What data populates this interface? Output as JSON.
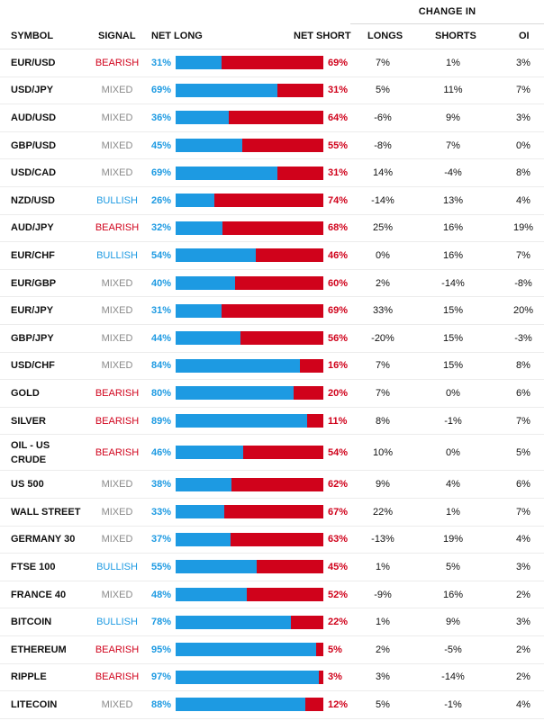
{
  "header": {
    "change_in": "CHANGE IN",
    "symbol": "SYMBOL",
    "signal": "SIGNAL",
    "net_long": "NET LONG",
    "net_short": "NET SHORT",
    "longs": "LONGS",
    "shorts": "SHORTS",
    "oi": "OI"
  },
  "colors": {
    "long": "#1d9ae2",
    "short": "#d0021b",
    "mixed": "#8a8a8a"
  },
  "rows": [
    {
      "symbol": "EUR/USD",
      "signal": "BEARISH",
      "net_long": "31%",
      "net_long_value": 31,
      "net_short": "69%",
      "longs": "7%",
      "shorts": "1%",
      "oi": "3%"
    },
    {
      "symbol": "USD/JPY",
      "signal": "MIXED",
      "net_long": "69%",
      "net_long_value": 69,
      "net_short": "31%",
      "longs": "5%",
      "shorts": "11%",
      "oi": "7%"
    },
    {
      "symbol": "AUD/USD",
      "signal": "MIXED",
      "net_long": "36%",
      "net_long_value": 36,
      "net_short": "64%",
      "longs": "-6%",
      "shorts": "9%",
      "oi": "3%"
    },
    {
      "symbol": "GBP/USD",
      "signal": "MIXED",
      "net_long": "45%",
      "net_long_value": 45,
      "net_short": "55%",
      "longs": "-8%",
      "shorts": "7%",
      "oi": "0%"
    },
    {
      "symbol": "USD/CAD",
      "signal": "MIXED",
      "net_long": "69%",
      "net_long_value": 69,
      "net_short": "31%",
      "longs": "14%",
      "shorts": "-4%",
      "oi": "8%"
    },
    {
      "symbol": "NZD/USD",
      "signal": "BULLISH",
      "net_long": "26%",
      "net_long_value": 26,
      "net_short": "74%",
      "longs": "-14%",
      "shorts": "13%",
      "oi": "4%"
    },
    {
      "symbol": "AUD/JPY",
      "signal": "BEARISH",
      "net_long": "32%",
      "net_long_value": 32,
      "net_short": "68%",
      "longs": "25%",
      "shorts": "16%",
      "oi": "19%"
    },
    {
      "symbol": "EUR/CHF",
      "signal": "BULLISH",
      "net_long": "54%",
      "net_long_value": 54,
      "net_short": "46%",
      "longs": "0%",
      "shorts": "16%",
      "oi": "7%"
    },
    {
      "symbol": "EUR/GBP",
      "signal": "MIXED",
      "net_long": "40%",
      "net_long_value": 40,
      "net_short": "60%",
      "longs": "2%",
      "shorts": "-14%",
      "oi": "-8%"
    },
    {
      "symbol": "EUR/JPY",
      "signal": "MIXED",
      "net_long": "31%",
      "net_long_value": 31,
      "net_short": "69%",
      "longs": "33%",
      "shorts": "15%",
      "oi": "20%"
    },
    {
      "symbol": "GBP/JPY",
      "signal": "MIXED",
      "net_long": "44%",
      "net_long_value": 44,
      "net_short": "56%",
      "longs": "-20%",
      "shorts": "15%",
      "oi": "-3%"
    },
    {
      "symbol": "USD/CHF",
      "signal": "MIXED",
      "net_long": "84%",
      "net_long_value": 84,
      "net_short": "16%",
      "longs": "7%",
      "shorts": "15%",
      "oi": "8%"
    },
    {
      "symbol": "GOLD",
      "signal": "BEARISH",
      "net_long": "80%",
      "net_long_value": 80,
      "net_short": "20%",
      "longs": "7%",
      "shorts": "0%",
      "oi": "6%"
    },
    {
      "symbol": "SILVER",
      "signal": "BEARISH",
      "net_long": "89%",
      "net_long_value": 89,
      "net_short": "11%",
      "longs": "8%",
      "shorts": "-1%",
      "oi": "7%"
    },
    {
      "symbol": "OIL - US CRUDE",
      "signal": "BEARISH",
      "net_long": "46%",
      "net_long_value": 46,
      "net_short": "54%",
      "longs": "10%",
      "shorts": "0%",
      "oi": "5%"
    },
    {
      "symbol": "US 500",
      "signal": "MIXED",
      "net_long": "38%",
      "net_long_value": 38,
      "net_short": "62%",
      "longs": "9%",
      "shorts": "4%",
      "oi": "6%"
    },
    {
      "symbol": "WALL STREET",
      "signal": "MIXED",
      "net_long": "33%",
      "net_long_value": 33,
      "net_short": "67%",
      "longs": "22%",
      "shorts": "1%",
      "oi": "7%"
    },
    {
      "symbol": "GERMANY 30",
      "signal": "MIXED",
      "net_long": "37%",
      "net_long_value": 37,
      "net_short": "63%",
      "longs": "-13%",
      "shorts": "19%",
      "oi": "4%"
    },
    {
      "symbol": "FTSE 100",
      "signal": "BULLISH",
      "net_long": "55%",
      "net_long_value": 55,
      "net_short": "45%",
      "longs": "1%",
      "shorts": "5%",
      "oi": "3%"
    },
    {
      "symbol": "FRANCE 40",
      "signal": "MIXED",
      "net_long": "48%",
      "net_long_value": 48,
      "net_short": "52%",
      "longs": "-9%",
      "shorts": "16%",
      "oi": "2%"
    },
    {
      "symbol": "BITCOIN",
      "signal": "BULLISH",
      "net_long": "78%",
      "net_long_value": 78,
      "net_short": "22%",
      "longs": "1%",
      "shorts": "9%",
      "oi": "3%"
    },
    {
      "symbol": "ETHEREUM",
      "signal": "BEARISH",
      "net_long": "95%",
      "net_long_value": 95,
      "net_short": "5%",
      "longs": "2%",
      "shorts": "-5%",
      "oi": "2%"
    },
    {
      "symbol": "RIPPLE",
      "signal": "BEARISH",
      "net_long": "97%",
      "net_long_value": 97,
      "net_short": "3%",
      "longs": "3%",
      "shorts": "-14%",
      "oi": "2%"
    },
    {
      "symbol": "LITECOIN",
      "signal": "MIXED",
      "net_long": "88%",
      "net_long_value": 88,
      "net_short": "12%",
      "longs": "5%",
      "shorts": "-1%",
      "oi": "4%"
    }
  ]
}
